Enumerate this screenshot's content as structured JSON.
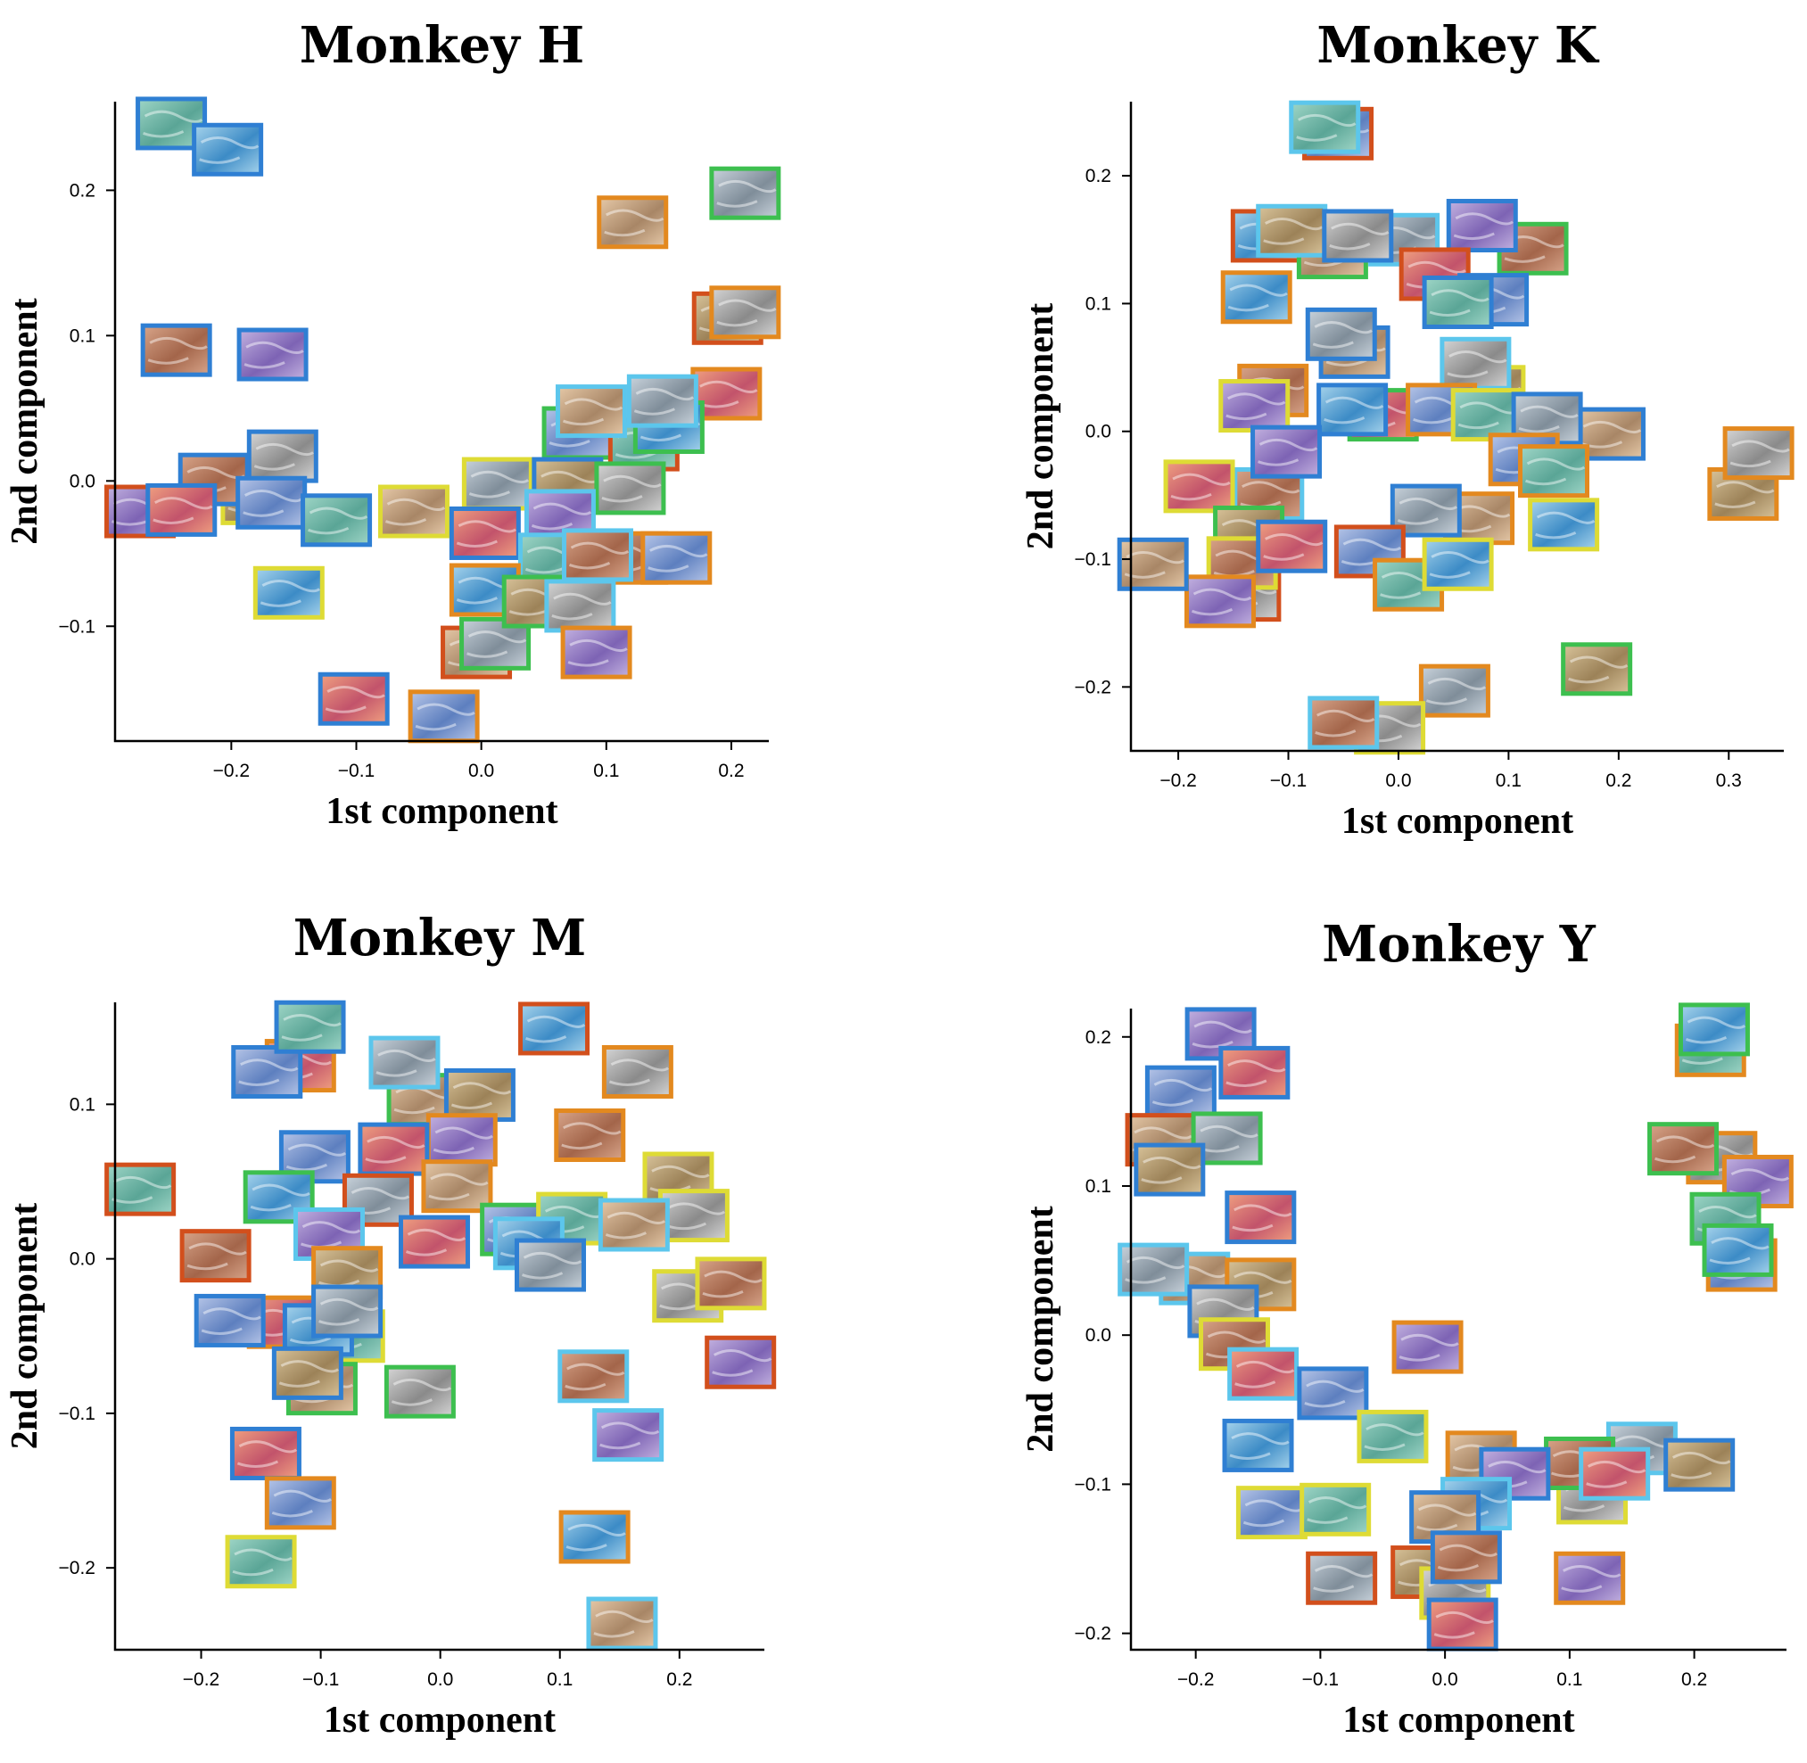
{
  "border_colors": {
    "blue": "#2f7fd3",
    "cyan": "#5cc6ec",
    "green": "#3dbf4f",
    "orange": "#e3891f",
    "red": "#d24f1c",
    "yellow": "#dedb35"
  },
  "chart_data": [
    {
      "type": "scatter",
      "title": "Monkey H",
      "xlabel": "1st component",
      "ylabel": "2nd component",
      "xlim": [
        -0.293,
        0.23
      ],
      "ylim": [
        -0.179,
        0.261
      ],
      "xticks": [
        -0.2,
        -0.1,
        0.0,
        0.1,
        0.2
      ],
      "xtick_labels": [
        "−0.2",
        "−0.1",
        "0.0",
        "0.1",
        "0.2"
      ],
      "yticks": [
        -0.1,
        0.0,
        0.1,
        0.2
      ],
      "ytick_labels": [
        "−0.1",
        "0.0",
        "0.1",
        "0.2"
      ],
      "marker": "image-thumbnail",
      "points": [
        [
          -0.248,
          0.246,
          "blue"
        ],
        [
          -0.203,
          0.228,
          "blue"
        ],
        [
          0.121,
          0.178,
          "orange"
        ],
        [
          0.211,
          0.198,
          "green"
        ],
        [
          0.197,
          0.112,
          "red"
        ],
        [
          0.211,
          0.116,
          "orange"
        ],
        [
          -0.244,
          0.09,
          "blue"
        ],
        [
          -0.167,
          0.087,
          "blue"
        ],
        [
          0.196,
          0.06,
          "orange"
        ],
        [
          0.077,
          0.033,
          "green"
        ],
        [
          0.13,
          0.025,
          "red"
        ],
        [
          0.15,
          0.037,
          "green"
        ],
        [
          0.088,
          0.048,
          "cyan"
        ],
        [
          0.145,
          0.055,
          "cyan"
        ],
        [
          -0.18,
          -0.012,
          "yellow"
        ],
        [
          -0.159,
          0.017,
          "blue"
        ],
        [
          -0.214,
          0.001,
          "blue"
        ],
        [
          -0.273,
          -0.021,
          "red"
        ],
        [
          -0.24,
          -0.02,
          "blue"
        ],
        [
          -0.168,
          -0.015,
          "blue"
        ],
        [
          -0.116,
          -0.027,
          "blue"
        ],
        [
          -0.154,
          -0.077,
          "yellow"
        ],
        [
          -0.054,
          -0.021,
          "yellow"
        ],
        [
          0.013,
          -0.002,
          "yellow"
        ],
        [
          0.069,
          -0.002,
          "blue"
        ],
        [
          0.119,
          -0.005,
          "green"
        ],
        [
          0.121,
          -0.053,
          "orange"
        ],
        [
          0.063,
          -0.024,
          "cyan"
        ],
        [
          0.003,
          -0.036,
          "blue"
        ],
        [
          0.156,
          -0.053,
          "orange"
        ],
        [
          0.058,
          -0.054,
          "cyan"
        ],
        [
          0.003,
          -0.075,
          "orange"
        ],
        [
          -0.004,
          -0.118,
          "red"
        ],
        [
          0.011,
          -0.112,
          "green"
        ],
        [
          0.045,
          -0.083,
          "green"
        ],
        [
          0.079,
          -0.086,
          "cyan"
        ],
        [
          0.093,
          -0.051,
          "cyan"
        ],
        [
          0.092,
          -0.118,
          "orange"
        ],
        [
          -0.102,
          -0.15,
          "blue"
        ],
        [
          -0.03,
          -0.162,
          "orange"
        ]
      ]
    },
    {
      "type": "scatter",
      "title": "Monkey K",
      "xlabel": "1st component",
      "ylabel": "2nd component",
      "xlim": [
        -0.243,
        0.35
      ],
      "ylim": [
        -0.25,
        0.258
      ],
      "xticks": [
        -0.2,
        -0.1,
        0.0,
        0.1,
        0.2,
        0.3
      ],
      "xtick_labels": [
        "−0.2",
        "−0.1",
        "0.0",
        "0.1",
        "0.2",
        "0.3"
      ],
      "yticks": [
        -0.2,
        -0.1,
        0.0,
        0.1,
        0.2
      ],
      "ytick_labels": [
        "−0.2",
        "−0.1",
        "0.0",
        "0.1",
        "0.2"
      ],
      "marker": "image-thumbnail",
      "points": [
        [
          -0.055,
          0.233,
          "red"
        ],
        [
          -0.067,
          0.238,
          "cyan"
        ],
        [
          -0.12,
          0.153,
          "red"
        ],
        [
          -0.06,
          0.14,
          "green"
        ],
        [
          0.005,
          0.15,
          "cyan"
        ],
        [
          -0.097,
          0.157,
          "cyan"
        ],
        [
          -0.037,
          0.153,
          "blue"
        ],
        [
          0.122,
          0.143,
          "green"
        ],
        [
          0.076,
          0.161,
          "blue"
        ],
        [
          0.033,
          0.123,
          "red"
        ],
        [
          0.086,
          0.103,
          "blue"
        ],
        [
          0.054,
          0.101,
          "blue"
        ],
        [
          -0.129,
          0.105,
          "orange"
        ],
        [
          -0.04,
          0.062,
          "blue"
        ],
        [
          -0.052,
          0.076,
          "blue"
        ],
        [
          0.083,
          0.031,
          "yellow"
        ],
        [
          0.07,
          0.053,
          "cyan"
        ],
        [
          -0.114,
          0.032,
          "orange"
        ],
        [
          -0.131,
          0.02,
          "yellow"
        ],
        [
          -0.014,
          0.013,
          "green"
        ],
        [
          0.039,
          0.017,
          "orange"
        ],
        [
          0.08,
          0.013,
          "yellow"
        ],
        [
          -0.042,
          0.017,
          "blue"
        ],
        [
          0.192,
          -0.002,
          "blue"
        ],
        [
          0.135,
          0.01,
          "blue"
        ],
        [
          0.313,
          -0.049,
          "orange"
        ],
        [
          0.327,
          -0.017,
          "orange"
        ],
        [
          -0.118,
          -0.049,
          "cyan"
        ],
        [
          -0.102,
          -0.016,
          "blue"
        ],
        [
          -0.181,
          -0.043,
          "yellow"
        ],
        [
          0.114,
          -0.022,
          "orange"
        ],
        [
          0.141,
          -0.031,
          "orange"
        ],
        [
          0.15,
          -0.073,
          "yellow"
        ],
        [
          0.073,
          -0.068,
          "orange"
        ],
        [
          0.025,
          -0.062,
          "blue"
        ],
        [
          -0.136,
          -0.079,
          "green"
        ],
        [
          -0.139,
          -0.128,
          "red"
        ],
        [
          -0.142,
          -0.103,
          "yellow"
        ],
        [
          -0.162,
          -0.133,
          "orange"
        ],
        [
          -0.097,
          -0.09,
          "blue"
        ],
        [
          -0.026,
          -0.094,
          "red"
        ],
        [
          0.009,
          -0.12,
          "orange"
        ],
        [
          0.054,
          -0.104,
          "yellow"
        ],
        [
          -0.223,
          -0.104,
          "blue"
        ],
        [
          0.051,
          -0.203,
          "orange"
        ],
        [
          0.18,
          -0.186,
          "green"
        ],
        [
          -0.008,
          -0.232,
          "yellow"
        ],
        [
          -0.05,
          -0.228,
          "cyan"
        ]
      ]
    },
    {
      "type": "scatter",
      "title": "Monkey M",
      "xlabel": "1st component",
      "ylabel": "2nd component",
      "xlim": [
        -0.272,
        0.271
      ],
      "ylim": [
        -0.253,
        0.166
      ],
      "xticks": [
        -0.2,
        -0.1,
        0.0,
        0.1,
        0.2
      ],
      "xtick_labels": [
        "−0.2",
        "−0.1",
        "0.0",
        "0.1",
        "0.2"
      ],
      "yticks": [
        -0.2,
        -0.1,
        0.0,
        0.1
      ],
      "ytick_labels": [
        "−0.2",
        "−0.1",
        "0.0",
        "0.1"
      ],
      "marker": "image-thumbnail",
      "points": [
        [
          -0.117,
          0.125,
          "orange"
        ],
        [
          -0.145,
          0.121,
          "blue"
        ],
        [
          -0.109,
          0.15,
          "blue"
        ],
        [
          0.095,
          0.149,
          "red"
        ],
        [
          -0.015,
          0.103,
          "green"
        ],
        [
          -0.03,
          0.127,
          "cyan"
        ],
        [
          0.033,
          0.106,
          "blue"
        ],
        [
          0.165,
          0.121,
          "orange"
        ],
        [
          0.125,
          0.08,
          "orange"
        ],
        [
          0.018,
          0.077,
          "orange"
        ],
        [
          -0.039,
          0.071,
          "blue"
        ],
        [
          -0.105,
          0.066,
          "blue"
        ],
        [
          -0.251,
          0.045,
          "red"
        ],
        [
          -0.135,
          0.04,
          "green"
        ],
        [
          0.014,
          0.047,
          "orange"
        ],
        [
          -0.052,
          0.038,
          "red"
        ],
        [
          0.199,
          0.052,
          "yellow"
        ],
        [
          0.212,
          0.028,
          "yellow"
        ],
        [
          -0.188,
          0.002,
          "red"
        ],
        [
          -0.093,
          0.016,
          "cyan"
        ],
        [
          -0.005,
          0.011,
          "blue"
        ],
        [
          0.063,
          0.019,
          "green"
        ],
        [
          0.11,
          0.026,
          "yellow"
        ],
        [
          0.074,
          0.01,
          "cyan"
        ],
        [
          0.162,
          0.022,
          "cyan"
        ],
        [
          0.092,
          -0.004,
          "blue"
        ],
        [
          -0.078,
          -0.009,
          "orange"
        ],
        [
          0.207,
          -0.024,
          "yellow"
        ],
        [
          0.243,
          -0.016,
          "yellow"
        ],
        [
          0.251,
          -0.067,
          "red"
        ],
        [
          -0.132,
          -0.041,
          "orange"
        ],
        [
          -0.176,
          -0.04,
          "blue"
        ],
        [
          -0.076,
          -0.05,
          "yellow"
        ],
        [
          -0.102,
          -0.046,
          "blue"
        ],
        [
          -0.099,
          -0.084,
          "green"
        ],
        [
          -0.078,
          -0.034,
          "blue"
        ],
        [
          -0.111,
          -0.074,
          "blue"
        ],
        [
          -0.017,
          -0.086,
          "green"
        ],
        [
          0.128,
          -0.076,
          "cyan"
        ],
        [
          0.157,
          -0.114,
          "cyan"
        ],
        [
          -0.146,
          -0.126,
          "blue"
        ],
        [
          -0.117,
          -0.158,
          "orange"
        ],
        [
          -0.15,
          -0.196,
          "yellow"
        ],
        [
          0.129,
          -0.18,
          "orange"
        ],
        [
          0.152,
          -0.236,
          "cyan"
        ]
      ]
    },
    {
      "type": "scatter",
      "title": "Monkey Y",
      "xlabel": "1st component",
      "ylabel": "2nd component",
      "xlim": [
        -0.252,
        0.274
      ],
      "ylim": [
        -0.211,
        0.219
      ],
      "xticks": [
        -0.2,
        -0.1,
        0.0,
        0.1,
        0.2
      ],
      "xtick_labels": [
        "−0.2",
        "−0.1",
        "0.0",
        "0.1",
        "0.2"
      ],
      "yticks": [
        -0.2,
        -0.1,
        0.0,
        0.1,
        0.2
      ],
      "ytick_labels": [
        "−0.2",
        "−0.1",
        "0.0",
        "0.1",
        "0.2"
      ],
      "marker": "image-thumbnail",
      "points": [
        [
          -0.18,
          0.202,
          "blue"
        ],
        [
          -0.153,
          0.176,
          "blue"
        ],
        [
          -0.212,
          0.163,
          "blue"
        ],
        [
          0.213,
          0.191,
          "orange"
        ],
        [
          0.216,
          0.205,
          "green"
        ],
        [
          -0.228,
          0.131,
          "red"
        ],
        [
          -0.175,
          0.132,
          "green"
        ],
        [
          -0.221,
          0.111,
          "blue"
        ],
        [
          0.222,
          0.119,
          "orange"
        ],
        [
          0.191,
          0.125,
          "green"
        ],
        [
          0.251,
          0.103,
          "orange"
        ],
        [
          -0.148,
          0.079,
          "blue"
        ],
        [
          0.238,
          0.047,
          "orange"
        ],
        [
          0.225,
          0.078,
          "green"
        ],
        [
          0.235,
          0.057,
          "green"
        ],
        [
          -0.201,
          0.038,
          "cyan"
        ],
        [
          -0.234,
          0.044,
          "cyan"
        ],
        [
          -0.148,
          0.034,
          "orange"
        ],
        [
          -0.178,
          0.016,
          "blue"
        ],
        [
          -0.169,
          -0.006,
          "yellow"
        ],
        [
          -0.014,
          -0.008,
          "orange"
        ],
        [
          -0.146,
          -0.026,
          "cyan"
        ],
        [
          -0.09,
          -0.039,
          "blue"
        ],
        [
          -0.042,
          -0.068,
          "yellow"
        ],
        [
          -0.15,
          -0.074,
          "blue"
        ],
        [
          0.029,
          -0.082,
          "orange"
        ],
        [
          0.158,
          -0.076,
          "cyan"
        ],
        [
          0.204,
          -0.087,
          "blue"
        ],
        [
          0.118,
          -0.109,
          "yellow"
        ],
        [
          0.108,
          -0.086,
          "green"
        ],
        [
          0.056,
          -0.093,
          "blue"
        ],
        [
          0.136,
          -0.093,
          "cyan"
        ],
        [
          -0.139,
          -0.119,
          "yellow"
        ],
        [
          -0.088,
          -0.117,
          "yellow"
        ],
        [
          0.025,
          -0.113,
          "cyan"
        ],
        [
          0.0,
          -0.122,
          "blue"
        ],
        [
          -0.083,
          -0.163,
          "red"
        ],
        [
          -0.015,
          -0.159,
          "red"
        ],
        [
          0.008,
          -0.173,
          "yellow"
        ],
        [
          0.017,
          -0.149,
          "blue"
        ],
        [
          0.116,
          -0.163,
          "orange"
        ],
        [
          0.014,
          -0.194,
          "blue"
        ]
      ]
    }
  ]
}
